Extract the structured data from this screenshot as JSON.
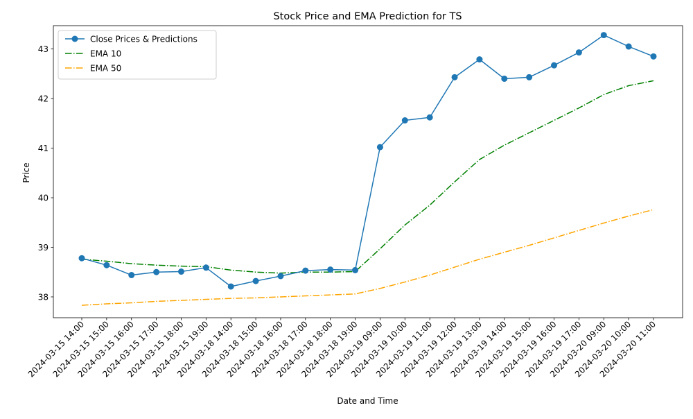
{
  "chart_data": {
    "type": "line",
    "title": "Stock Price and EMA Prediction for TS",
    "xlabel": "Date and Time",
    "ylabel": "Price",
    "categories": [
      "2024-03-15 14:00",
      "2024-03-15 15:00",
      "2024-03-15 16:00",
      "2024-03-15 17:00",
      "2024-03-15 18:00",
      "2024-03-15 19:00",
      "2024-03-18 14:00",
      "2024-03-18 15:00",
      "2024-03-18 16:00",
      "2024-03-18 17:00",
      "2024-03-18 18:00",
      "2024-03-18 19:00",
      "2024-03-19 09:00",
      "2024-03-19 10:00",
      "2024-03-19 11:00",
      "2024-03-19 12:00",
      "2024-03-19 13:00",
      "2024-03-19 14:00",
      "2024-03-19 15:00",
      "2024-03-19 16:00",
      "2024-03-19 17:00",
      "2024-03-20 09:00",
      "2024-03-20 10:00",
      "2024-03-20 11:00"
    ],
    "ylim": [
      37.58,
      43.47
    ],
    "yticks": [
      38,
      39,
      40,
      41,
      42,
      43
    ],
    "grid": false,
    "legend_position": "upper-left",
    "series": [
      {
        "name": "Close Prices & Predictions",
        "color": "#1f77b4",
        "line_style": "solid",
        "marker": "circle",
        "values": [
          38.78,
          38.64,
          38.44,
          38.5,
          38.51,
          38.59,
          38.21,
          38.32,
          38.42,
          38.53,
          38.55,
          38.54,
          41.02,
          41.56,
          41.62,
          42.43,
          42.79,
          42.4,
          42.43,
          42.67,
          42.93,
          43.28,
          43.05,
          42.85
        ]
      },
      {
        "name": "EMA 10",
        "color": "#008000",
        "line_style": "dashdot",
        "marker": "none",
        "values": [
          38.76,
          38.72,
          38.67,
          38.64,
          38.62,
          38.61,
          38.54,
          38.5,
          38.48,
          38.5,
          38.5,
          38.51,
          38.97,
          39.45,
          39.85,
          40.32,
          40.77,
          41.06,
          41.31,
          41.56,
          41.81,
          42.08,
          42.26,
          42.36
        ]
      },
      {
        "name": "EMA 50",
        "color": "#ffa500",
        "line_style": "dashdot",
        "marker": "none",
        "values": [
          37.83,
          37.86,
          37.88,
          37.91,
          37.93,
          37.95,
          37.97,
          37.98,
          38.0,
          38.02,
          38.04,
          38.06,
          38.17,
          38.3,
          38.44,
          38.6,
          38.76,
          38.9,
          39.04,
          39.19,
          39.34,
          39.49,
          39.63,
          39.76
        ]
      }
    ]
  }
}
